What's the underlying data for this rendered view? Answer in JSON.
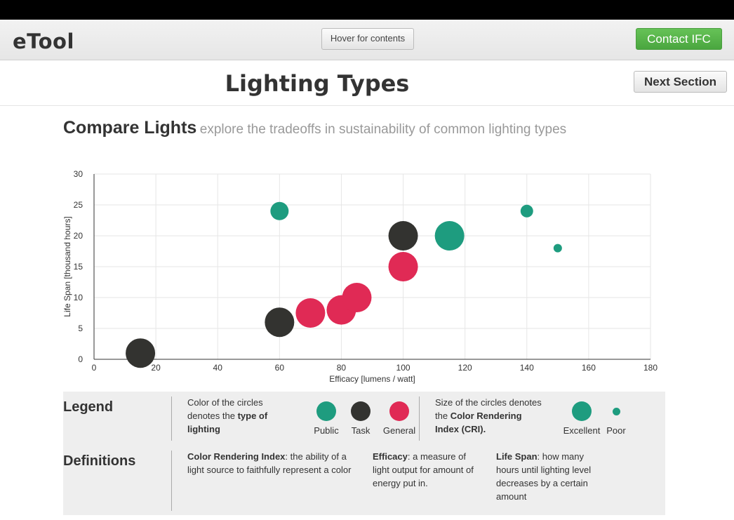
{
  "header": {
    "brand": "eTool",
    "hover_label": "Hover for contents",
    "contact_label": "Contact IFC"
  },
  "page": {
    "title": "Lighting Types",
    "next_label": "Next Section",
    "subheading_main": "Compare Lights",
    "subheading_muted": "explore the tradeoffs in sustainability of common lighting types"
  },
  "colors": {
    "public": "#1e9c7f",
    "task": "#333330",
    "general": "#e02a55",
    "contact_green": "#5cb85c"
  },
  "chart_data": {
    "type": "scatter",
    "xlabel": "Efficacy [lumens / watt]",
    "ylabel": "Life Span [thousand hours]",
    "xlim": [
      0,
      180
    ],
    "ylim": [
      0,
      30
    ],
    "xticks": [
      0,
      20,
      40,
      60,
      80,
      100,
      120,
      140,
      160,
      180
    ],
    "yticks": [
      0,
      5,
      10,
      15,
      20,
      25,
      30
    ],
    "grid": true,
    "points": [
      {
        "x": 15,
        "y": 1,
        "group": "Task",
        "cri": "Excellent"
      },
      {
        "x": 60,
        "y": 24,
        "group": "Public",
        "cri": "Good"
      },
      {
        "x": 60,
        "y": 6,
        "group": "Task",
        "cri": "Excellent"
      },
      {
        "x": 70,
        "y": 7.5,
        "group": "General",
        "cri": "Excellent"
      },
      {
        "x": 80,
        "y": 8,
        "group": "General",
        "cri": "Excellent"
      },
      {
        "x": 85,
        "y": 10,
        "group": "General",
        "cri": "Excellent"
      },
      {
        "x": 100,
        "y": 20,
        "group": "Task",
        "cri": "Excellent"
      },
      {
        "x": 100,
        "y": 15,
        "group": "General",
        "cri": "Excellent"
      },
      {
        "x": 115,
        "y": 20,
        "group": "Public",
        "cri": "Excellent"
      },
      {
        "x": 140,
        "y": 24,
        "group": "Public",
        "cri": "Fair"
      },
      {
        "x": 150,
        "y": 18,
        "group": "Public",
        "cri": "Poor"
      }
    ]
  },
  "legend": {
    "title": "Legend",
    "color_text_1": "Color of the circles",
    "color_text_2": "denotes the ",
    "color_text_bold": "type of lighting",
    "public_label": "Public",
    "task_label": "Task",
    "general_label": "General",
    "size_text_1": "Size of the circles denotes",
    "size_text_2": "the ",
    "size_text_bold": "Color Rendering Index (CRI).",
    "excellent_label": "Excellent",
    "poor_label": "Poor"
  },
  "definitions": {
    "title": "Definitions",
    "cri_term": "Color Rendering Index",
    "cri_def": ": the ability of a light source to faithfully represent a color",
    "efficacy_term": "Efficacy",
    "efficacy_def": ": a measure of light output for amount of energy put in.",
    "lifespan_term": "Life Span",
    "lifespan_def": ": how many hours until lighting level decreases by a certain amount"
  }
}
